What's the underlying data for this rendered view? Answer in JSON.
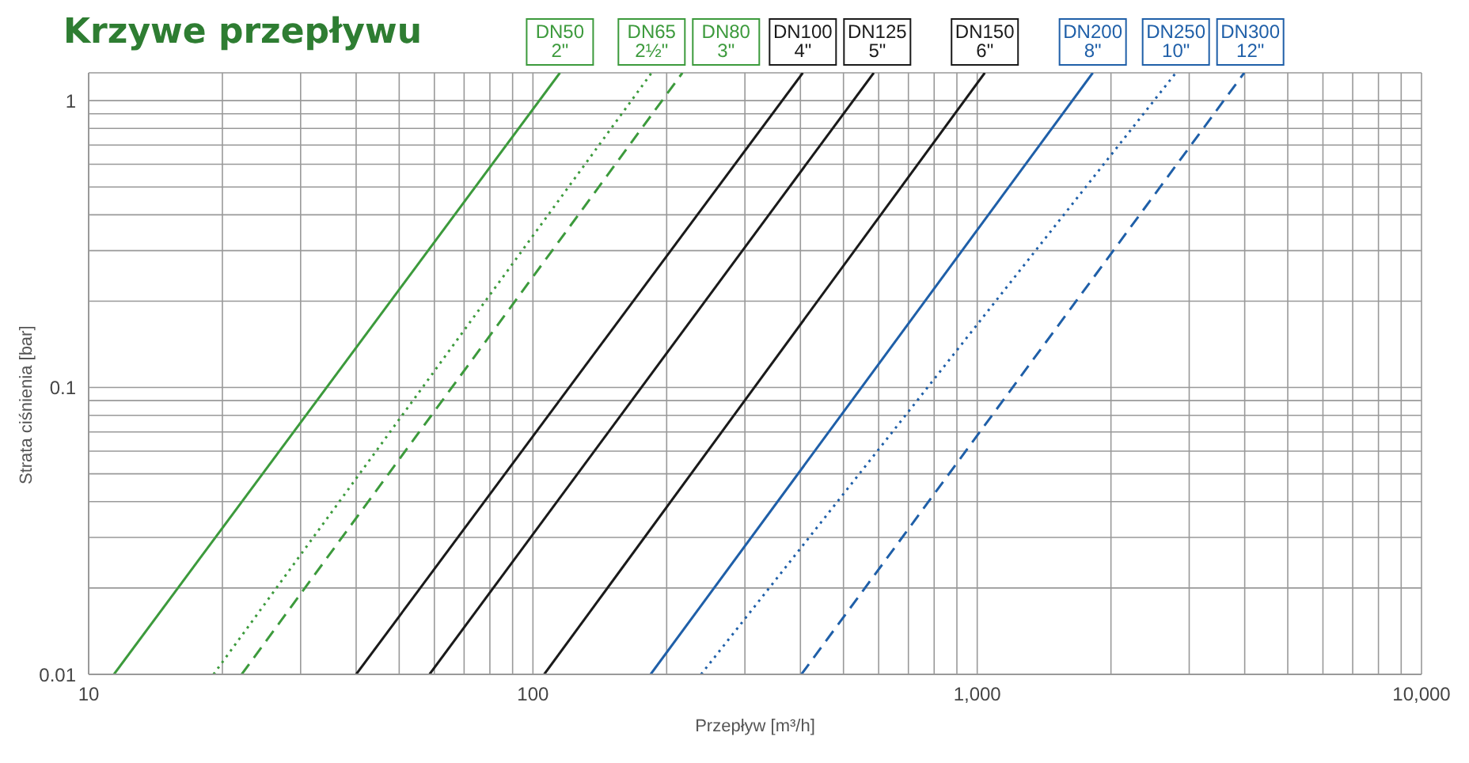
{
  "chart_data": {
    "type": "line",
    "title": "Krzywe przepływu",
    "xlabel": "Przepływ [m³/h]",
    "ylabel": "Strata ciśnienia [bar]",
    "log": "xy",
    "grid": true,
    "legend": false,
    "marker": "none",
    "xlim": [
      10,
      10000
    ],
    "ylim": [
      0.01,
      1.25
    ],
    "xticks": [
      10,
      {
        "value": 20,
        "label": null
      },
      {
        "value": 30,
        "label": null
      },
      {
        "value": 40,
        "label": null
      },
      {
        "value": 50,
        "label": null
      },
      {
        "value": 60,
        "label": null
      },
      {
        "value": 70,
        "label": null
      },
      {
        "value": 80,
        "label": null
      },
      {
        "value": 90,
        "label": null
      },
      100,
      {
        "value": 200,
        "label": null
      },
      {
        "value": 300,
        "label": null
      },
      {
        "value": 400,
        "label": null
      },
      {
        "value": 500,
        "label": null
      },
      {
        "value": 600,
        "label": null
      },
      {
        "value": 700,
        "label": null
      },
      {
        "value": 800,
        "label": null
      },
      {
        "value": 900,
        "label": null
      },
      {
        "value": 1000,
        "label": "1,000"
      },
      {
        "value": 2000,
        "label": null
      },
      {
        "value": 3000,
        "label": null
      },
      {
        "value": 4000,
        "label": null
      },
      {
        "value": 5000,
        "label": null
      },
      {
        "value": 6000,
        "label": null
      },
      {
        "value": 7000,
        "label": null
      },
      {
        "value": 8000,
        "label": null
      },
      {
        "value": 9000,
        "label": null
      },
      {
        "value": 10000,
        "label": "10,000"
      }
    ],
    "yticks": [
      0.01,
      {
        "value": 0.02,
        "label": null
      },
      {
        "value": 0.03,
        "label": null
      },
      {
        "value": 0.04,
        "label": null
      },
      {
        "value": 0.05,
        "label": null
      },
      {
        "value": 0.06,
        "label": null
      },
      {
        "value": 0.07,
        "label": null
      },
      {
        "value": 0.08,
        "label": null
      },
      {
        "value": 0.09,
        "label": null
      },
      0.1,
      {
        "value": 0.2,
        "label": null
      },
      {
        "value": 0.3,
        "label": null
      },
      {
        "value": 0.4,
        "label": null
      },
      {
        "value": 0.5,
        "label": null
      },
      {
        "value": 0.6,
        "label": null
      },
      {
        "value": 0.7,
        "label": null
      },
      {
        "value": 0.8,
        "label": null
      },
      {
        "value": 0.9,
        "label": null
      },
      1
    ],
    "series": [
      {
        "name": "DN50\n2\"",
        "color": "#3c9a3c",
        "line_style": "solid",
        "x": [
          11.4,
          115
        ],
        "values": [
          0.01,
          1.25
        ]
      },
      {
        "name": "DN65\n2½\"",
        "color": "#3c9a3c",
        "line_style": "dotted",
        "x": [
          19.1,
          185
        ],
        "values": [
          0.01,
          1.25
        ]
      },
      {
        "name": "DN80\n3\"",
        "color": "#3c9a3c",
        "line_style": "dashed",
        "x": [
          22.1,
          217
        ],
        "values": [
          0.01,
          1.25
        ]
      },
      {
        "name": "DN100\n4\"",
        "color": "#1a1a1a",
        "line_style": "solid",
        "x": [
          40,
          405
        ],
        "values": [
          0.01,
          1.25
        ]
      },
      {
        "name": "DN125\n5\"",
        "color": "#1a1a1a",
        "line_style": "solid",
        "x": [
          58.5,
          585
        ],
        "values": [
          0.01,
          1.25
        ]
      },
      {
        "name": "DN150\n6\"",
        "color": "#1a1a1a",
        "line_style": "solid",
        "x": [
          106,
          1040
        ],
        "values": [
          0.01,
          1.25
        ]
      },
      {
        "name": "DN200\n8\"",
        "color": "#1f5fa8",
        "line_style": "solid",
        "x": [
          184,
          1820
        ],
        "values": [
          0.01,
          1.25
        ]
      },
      {
        "name": "DN250\n10\"",
        "color": "#1f5fa8",
        "line_style": "dotted",
        "x": [
          239,
          2800
        ],
        "values": [
          0.01,
          1.25
        ]
      },
      {
        "name": "DN300\n12\"",
        "color": "#1f5fa8",
        "line_style": "dashed",
        "x": [
          402,
          3990
        ],
        "values": [
          0.01,
          1.25
        ]
      }
    ]
  }
}
